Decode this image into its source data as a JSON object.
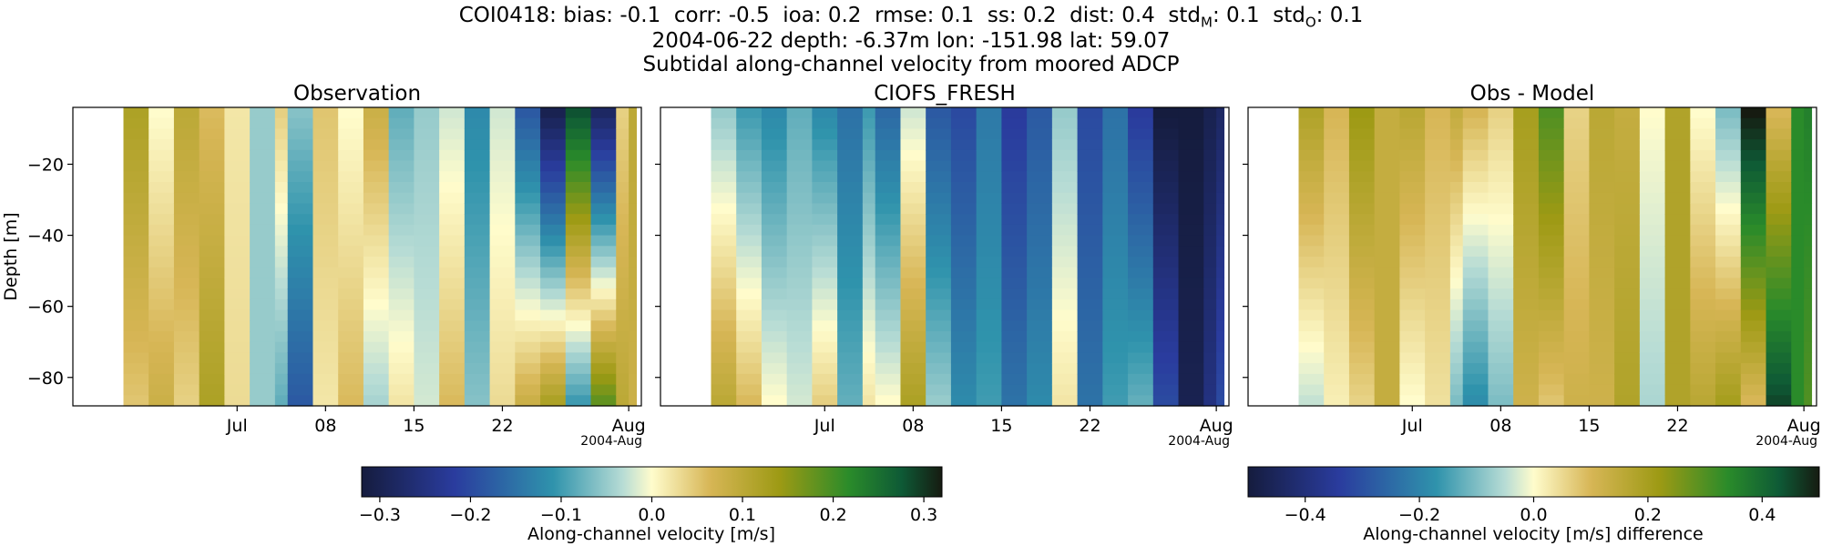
{
  "header": {
    "line1": "COI0418: bias: -0.1  corr: -0.5  ioa: 0.2  rmse: 0.1  ss: 0.2  dist: 0.4  std",
    "line1_m_sub": "M",
    "line1_mid": ": 0.1  std",
    "line1_o_sub": "O",
    "line1_end": ": 0.1",
    "line2": "2004-06-22 depth: -6.37m lon: -151.98 lat: 59.07",
    "line3": "Subtidal along-channel velocity from moored ADCP"
  },
  "chart_data": [
    {
      "type": "heatmap",
      "title": "Observation",
      "ylabel": "Depth [m]",
      "x_tick_labels": [
        "Jul",
        "08",
        "15",
        "22",
        "Aug"
      ],
      "x_offset_label": "2004-Aug",
      "y_ticks": [
        -20,
        -40,
        -60,
        -80
      ],
      "ylim": [
        -88,
        -4
      ],
      "colormap": "delta",
      "clim": [
        -0.32,
        0.32
      ],
      "columns": [
        {
          "date": "2004-06-22",
          "surface": 0.12,
          "bottom": 0.05
        },
        {
          "date": "2004-06-24",
          "surface": 0.0,
          "bottom": 0.08
        },
        {
          "date": "2004-06-26",
          "surface": 0.1,
          "bottom": 0.04
        },
        {
          "date": "2004-06-28",
          "surface": 0.06,
          "bottom": 0.12
        },
        {
          "date": "2004-06-30",
          "surface": 0.02,
          "bottom": 0.03
        },
        {
          "date": "2004-07-02",
          "surface": -0.05,
          "bottom": -0.05
        },
        {
          "date": "2004-07-04",
          "surface": 0.04,
          "bottom": -0.08
        },
        {
          "date": "2004-07-05",
          "surface": -0.06,
          "bottom": -0.18
        },
        {
          "date": "2004-07-07",
          "surface": 0.05,
          "bottom": 0.02
        },
        {
          "date": "2004-07-09",
          "surface": 0.0,
          "bottom": 0.06
        },
        {
          "date": "2004-07-11",
          "surface": 0.08,
          "bottom": -0.04
        },
        {
          "date": "2004-07-13",
          "surface": -0.08,
          "bottom": 0.02
        },
        {
          "date": "2004-07-15",
          "surface": -0.05,
          "bottom": -0.02
        },
        {
          "date": "2004-07-17",
          "surface": -0.02,
          "bottom": 0.06
        },
        {
          "date": "2004-07-19",
          "surface": -0.12,
          "bottom": -0.06
        },
        {
          "date": "2004-07-21",
          "surface": -0.02,
          "bottom": 0.03
        },
        {
          "date": "2004-07-23",
          "surface": -0.18,
          "bottom": 0.08
        },
        {
          "date": "2004-07-25",
          "surface": -0.3,
          "bottom": 0.12
        },
        {
          "date": "2004-07-27",
          "surface": 0.28,
          "bottom": -0.1
        },
        {
          "date": "2004-07-29",
          "surface": -0.28,
          "bottom": 0.18
        },
        {
          "date": "2004-07-31",
          "surface": 0.04,
          "bottom": 0.1
        },
        {
          "date": "2004-08-01",
          "surface": 0.1,
          "bottom": 0.08
        }
      ]
    },
    {
      "type": "heatmap",
      "title": "CIOFS_FRESH",
      "x_tick_labels": [
        "Jul",
        "08",
        "15",
        "22",
        "Aug"
      ],
      "x_offset_label": "2004-Aug",
      "ylim": [
        -88,
        -4
      ],
      "colormap": "delta",
      "clim": [
        -0.32,
        0.32
      ],
      "columns": [
        {
          "date": "2004-06-22",
          "surface": -0.05,
          "bottom": 0.1
        },
        {
          "date": "2004-06-24",
          "surface": -0.1,
          "bottom": 0.06
        },
        {
          "date": "2004-06-26",
          "surface": -0.12,
          "bottom": 0.0
        },
        {
          "date": "2004-06-28",
          "surface": -0.08,
          "bottom": -0.02
        },
        {
          "date": "2004-06-30",
          "surface": -0.12,
          "bottom": 0.04
        },
        {
          "date": "2004-07-02",
          "surface": -0.15,
          "bottom": -0.08
        },
        {
          "date": "2004-07-04",
          "surface": -0.1,
          "bottom": 0.02
        },
        {
          "date": "2004-07-05",
          "surface": -0.16,
          "bottom": 0.0
        },
        {
          "date": "2004-07-07",
          "surface": -0.02,
          "bottom": 0.12
        },
        {
          "date": "2004-07-09",
          "surface": -0.18,
          "bottom": -0.05
        },
        {
          "date": "2004-07-11",
          "surface": -0.2,
          "bottom": -0.12
        },
        {
          "date": "2004-07-13",
          "surface": -0.14,
          "bottom": -0.1
        },
        {
          "date": "2004-07-15",
          "surface": -0.22,
          "bottom": -0.15
        },
        {
          "date": "2004-07-17",
          "surface": -0.18,
          "bottom": -0.12
        },
        {
          "date": "2004-07-19",
          "surface": -0.05,
          "bottom": 0.02
        },
        {
          "date": "2004-07-21",
          "surface": -0.2,
          "bottom": -0.15
        },
        {
          "date": "2004-07-23",
          "surface": -0.15,
          "bottom": -0.1
        },
        {
          "date": "2004-07-25",
          "surface": -0.22,
          "bottom": -0.08
        },
        {
          "date": "2004-07-27",
          "surface": -0.32,
          "bottom": -0.2
        },
        {
          "date": "2004-07-29",
          "surface": -0.32,
          "bottom": -0.3
        },
        {
          "date": "2004-07-31",
          "surface": -0.3,
          "bottom": -0.25
        },
        {
          "date": "2004-08-01",
          "surface": -0.28,
          "bottom": -0.2
        }
      ]
    },
    {
      "type": "heatmap",
      "title": "Obs - Model",
      "x_tick_labels": [
        "Jul",
        "08",
        "15",
        "22",
        "Aug"
      ],
      "x_offset_label": "2004-Aug",
      "ylim": [
        -88,
        -4
      ],
      "colormap": "delta",
      "clim": [
        -0.5,
        0.5
      ],
      "columns": [
        {
          "date": "2004-06-22",
          "surface": 0.18,
          "bottom": -0.04
        },
        {
          "date": "2004-06-24",
          "surface": 0.1,
          "bottom": 0.02
        },
        {
          "date": "2004-06-26",
          "surface": 0.22,
          "bottom": 0.06
        },
        {
          "date": "2004-06-28",
          "surface": 0.14,
          "bottom": 0.14
        },
        {
          "date": "2004-06-30",
          "surface": 0.16,
          "bottom": 0.0
        },
        {
          "date": "2004-07-02",
          "surface": 0.1,
          "bottom": 0.04
        },
        {
          "date": "2004-07-04",
          "surface": 0.14,
          "bottom": -0.1
        },
        {
          "date": "2004-07-05",
          "surface": 0.1,
          "bottom": -0.18
        },
        {
          "date": "2004-07-07",
          "surface": 0.06,
          "bottom": -0.1
        },
        {
          "date": "2004-07-09",
          "surface": 0.2,
          "bottom": 0.12
        },
        {
          "date": "2004-07-11",
          "surface": 0.3,
          "bottom": 0.08
        },
        {
          "date": "2004-07-13",
          "surface": 0.06,
          "bottom": 0.12
        },
        {
          "date": "2004-07-15",
          "surface": 0.16,
          "bottom": 0.12
        },
        {
          "date": "2004-07-17",
          "surface": 0.14,
          "bottom": 0.18
        },
        {
          "date": "2004-07-19",
          "surface": 0.0,
          "bottom": -0.06
        },
        {
          "date": "2004-07-21",
          "surface": 0.18,
          "bottom": 0.18
        },
        {
          "date": "2004-07-23",
          "surface": 0.0,
          "bottom": 0.16
        },
        {
          "date": "2004-07-25",
          "surface": -0.1,
          "bottom": 0.2
        },
        {
          "date": "2004-07-27",
          "surface": 0.5,
          "bottom": 0.1
        },
        {
          "date": "2004-07-29",
          "surface": 0.1,
          "bottom": 0.45
        },
        {
          "date": "2004-07-31",
          "surface": 0.34,
          "bottom": 0.34
        },
        {
          "date": "2004-08-01",
          "surface": 0.36,
          "bottom": 0.3
        }
      ]
    }
  ],
  "colorbars": [
    {
      "label": "Along-channel velocity [m/s]",
      "min": -0.32,
      "max": 0.32,
      "ticks": [
        "−0.3",
        "−0.2",
        "−0.1",
        "0.0",
        "0.1",
        "0.2",
        "0.3"
      ],
      "tick_values": [
        -0.3,
        -0.2,
        -0.1,
        0.0,
        0.1,
        0.2,
        0.3
      ]
    },
    {
      "label": "Along-channel velocity [m/s] difference",
      "min": -0.5,
      "max": 0.5,
      "ticks": [
        "−0.4",
        "−0.2",
        "0.0",
        "0.2",
        "0.4"
      ],
      "tick_values": [
        -0.4,
        -0.2,
        0.0,
        0.2,
        0.4
      ]
    }
  ],
  "y_tick_labels": [
    "−20",
    "−40",
    "−60",
    "−80"
  ]
}
